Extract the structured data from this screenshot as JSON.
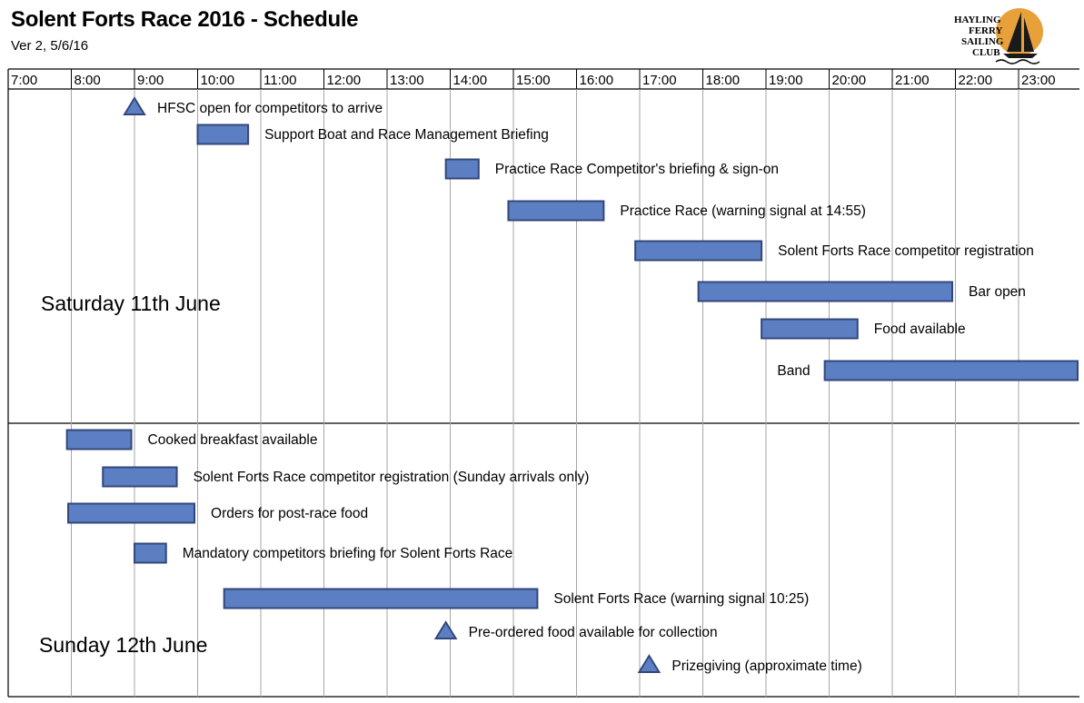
{
  "header": {
    "title": "Solent Forts Race 2016 - Schedule",
    "version": "Ver 2, 5/6/16"
  },
  "logo": {
    "lines": [
      "HAYLING",
      "FERRY",
      "SAILING",
      "CLUB"
    ],
    "sun_color": "#e8a13a"
  },
  "colors": {
    "bar_fill": "#5b7fc2",
    "bar_stroke": "#33477a",
    "grid": "#a6a6a6"
  },
  "timeline": {
    "hours": [
      "7:00",
      "8:00",
      "9:00",
      "10:00",
      "11:00",
      "12:00",
      "13:00",
      "14:00",
      "15:00",
      "16:00",
      "17:00",
      "18:00",
      "19:00",
      "20:00",
      "21:00",
      "22:00",
      "23:00"
    ],
    "start_hour": 7,
    "end_hour": 23.95
  },
  "days": [
    {
      "label": "Saturday 11th June",
      "events": [
        {
          "label": "HFSC open for competitors to arrive",
          "type": "milestone",
          "start": 9.0
        },
        {
          "label": "Support Boat and Race  Management Briefing",
          "type": "bar",
          "start": 10.0,
          "end": 10.8
        },
        {
          "label": "Practice Race Competitor's briefing & sign-on",
          "type": "bar",
          "start": 13.93,
          "end": 14.45
        },
        {
          "label": "Practice Race (warning signal at 14:55)",
          "type": "bar",
          "start": 14.92,
          "end": 16.43
        },
        {
          "label": "Solent Forts Race competitor registration",
          "type": "bar",
          "start": 16.93,
          "end": 18.93
        },
        {
          "label": "Bar open",
          "type": "bar",
          "start": 17.93,
          "end": 21.95
        },
        {
          "label": "Food available",
          "type": "bar",
          "start": 18.93,
          "end": 20.45
        },
        {
          "label": "Band",
          "type": "bar",
          "start": 19.93,
          "end": 23.95,
          "label_side": "left"
        }
      ]
    },
    {
      "label": "Sunday 12th June",
      "events": [
        {
          "label": "Cooked breakfast available",
          "type": "bar",
          "start": 7.93,
          "end": 8.95
        },
        {
          "label": "Solent Forts Race competitor registration (Sunday arrivals only)",
          "type": "bar",
          "start": 8.5,
          "end": 9.67
        },
        {
          "label": "Orders for post-race food",
          "type": "bar",
          "start": 7.95,
          "end": 9.95
        },
        {
          "label": "Mandatory competitors briefing  for Solent Forts Race",
          "type": "bar",
          "start": 9.0,
          "end": 9.5
        },
        {
          "label": "Solent Forts Race (warning signal 10:25)",
          "type": "bar",
          "start": 10.42,
          "end": 15.38
        },
        {
          "label": "Pre-ordered food available for collection",
          "type": "milestone",
          "start": 13.93
        },
        {
          "label": "Prizegiving (approximate time)",
          "type": "milestone",
          "start": 17.15
        }
      ]
    }
  ]
}
